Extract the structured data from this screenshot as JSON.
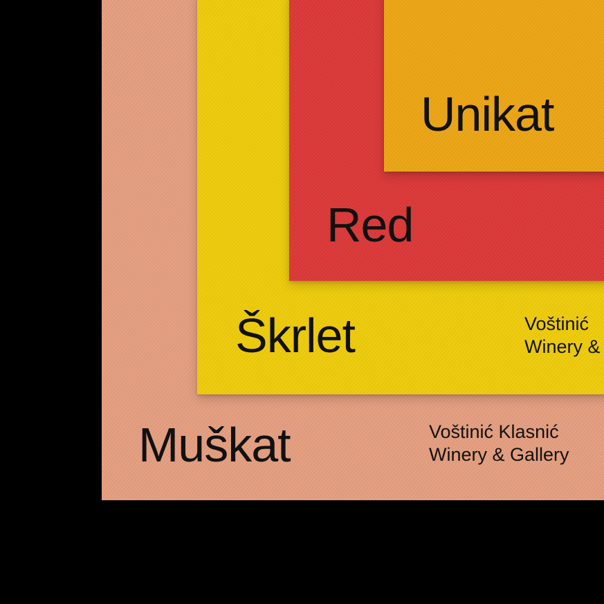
{
  "colors": {
    "background": "#000000",
    "muskat_card": "#E79E7E",
    "skrlet_card": "#F2CD05",
    "red_card": "#DE3434",
    "unikat_card": "#EFA50E",
    "text": "#111111"
  },
  "wines": {
    "unikat": {
      "name": "Unikat"
    },
    "red": {
      "name": "Red"
    },
    "skrlet": {
      "name": "Škrlet",
      "maker_line1": "Voštinić",
      "maker_line2": "Winery &"
    },
    "muskat": {
      "name": "Muškat",
      "maker_line1": "Voštinić Klasnić",
      "maker_line2": "Winery & Gallery"
    }
  }
}
